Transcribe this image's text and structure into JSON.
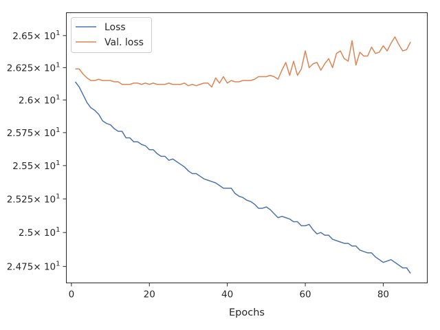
{
  "chart_data": {
    "type": "line",
    "xlabel": "Epochs",
    "ylabel": "",
    "xlim": [
      -1.3,
      91.3
    ],
    "ylim": [
      24.63,
      26.68
    ],
    "y_scale": "log",
    "grid": false,
    "legend_position": "top-left",
    "x_ticks": [
      {
        "value": 0,
        "label": "0"
      },
      {
        "value": 20,
        "label": "20"
      },
      {
        "value": 40,
        "label": "40"
      },
      {
        "value": 60,
        "label": "60"
      },
      {
        "value": 80,
        "label": "80"
      }
    ],
    "y_ticks": [
      {
        "value": 24.75,
        "label": "2.475",
        "exp": "1"
      },
      {
        "value": 25.0,
        "label": "2.5",
        "exp": "1"
      },
      {
        "value": 25.25,
        "label": "2.525",
        "exp": "1"
      },
      {
        "value": 25.5,
        "label": "2.55",
        "exp": "1"
      },
      {
        "value": 25.75,
        "label": "2.575",
        "exp": "1"
      },
      {
        "value": 26.0,
        "label": "2.6",
        "exp": "1"
      },
      {
        "value": 26.25,
        "label": "2.625",
        "exp": "1"
      },
      {
        "value": 26.5,
        "label": "2.65",
        "exp": "1"
      }
    ],
    "tick_base": "× 10",
    "x": [
      1,
      2,
      3,
      4,
      5,
      6,
      7,
      8,
      9,
      10,
      11,
      12,
      13,
      14,
      15,
      16,
      17,
      18,
      19,
      20,
      21,
      22,
      23,
      24,
      25,
      26,
      27,
      28,
      29,
      30,
      31,
      32,
      33,
      34,
      35,
      36,
      37,
      38,
      39,
      40,
      41,
      42,
      43,
      44,
      45,
      46,
      47,
      48,
      49,
      50,
      51,
      52,
      53,
      54,
      55,
      56,
      57,
      58,
      59,
      60,
      61,
      62,
      63,
      64,
      65,
      66,
      67,
      68,
      69,
      70,
      71,
      72,
      73,
      74,
      75,
      76,
      77,
      78,
      79,
      80,
      81,
      82,
      83,
      84,
      85,
      86,
      87
    ],
    "series": [
      {
        "name": "Loss",
        "color": "#4c72b0",
        "values": [
          26.14,
          26.1,
          26.04,
          25.98,
          25.94,
          25.92,
          25.89,
          25.84,
          25.82,
          25.81,
          25.78,
          25.76,
          25.76,
          25.71,
          25.71,
          25.68,
          25.68,
          25.66,
          25.65,
          25.62,
          25.62,
          25.59,
          25.57,
          25.57,
          25.54,
          25.55,
          25.53,
          25.51,
          25.49,
          25.46,
          25.44,
          25.44,
          25.42,
          25.4,
          25.39,
          25.38,
          25.37,
          25.35,
          25.33,
          25.33,
          25.33,
          25.29,
          25.27,
          25.26,
          25.24,
          25.23,
          25.21,
          25.18,
          25.18,
          25.19,
          25.17,
          25.14,
          25.11,
          25.12,
          25.11,
          25.1,
          25.08,
          25.08,
          25.05,
          25.05,
          25.06,
          25.02,
          24.99,
          25.0,
          24.98,
          24.98,
          24.95,
          24.94,
          24.93,
          24.92,
          24.92,
          24.9,
          24.9,
          24.87,
          24.86,
          24.85,
          24.85,
          24.82,
          24.8,
          24.78,
          24.79,
          24.8,
          24.78,
          24.76,
          24.74,
          24.74,
          24.7
        ]
      },
      {
        "name": "Val. loss",
        "color": "#dd8452",
        "values": [
          26.24,
          26.24,
          26.2,
          26.17,
          26.15,
          26.15,
          26.16,
          26.15,
          26.15,
          26.15,
          26.14,
          26.14,
          26.12,
          26.12,
          26.12,
          26.13,
          26.13,
          26.12,
          26.13,
          26.12,
          26.13,
          26.12,
          26.12,
          26.12,
          26.13,
          26.12,
          26.12,
          26.12,
          26.13,
          26.11,
          26.12,
          26.11,
          26.12,
          26.13,
          26.13,
          26.1,
          26.17,
          26.13,
          26.18,
          26.13,
          26.15,
          26.14,
          26.14,
          26.15,
          26.15,
          26.15,
          26.16,
          26.18,
          26.18,
          26.18,
          26.19,
          26.18,
          26.16,
          26.23,
          26.29,
          26.19,
          26.3,
          26.19,
          26.24,
          26.38,
          26.25,
          26.28,
          26.29,
          26.23,
          26.28,
          26.32,
          26.25,
          26.36,
          26.38,
          26.32,
          26.3,
          26.46,
          26.27,
          26.37,
          26.34,
          26.34,
          26.41,
          26.36,
          26.37,
          26.42,
          26.38,
          26.44,
          26.49,
          26.43,
          26.38,
          26.39,
          26.45
        ]
      }
    ]
  }
}
